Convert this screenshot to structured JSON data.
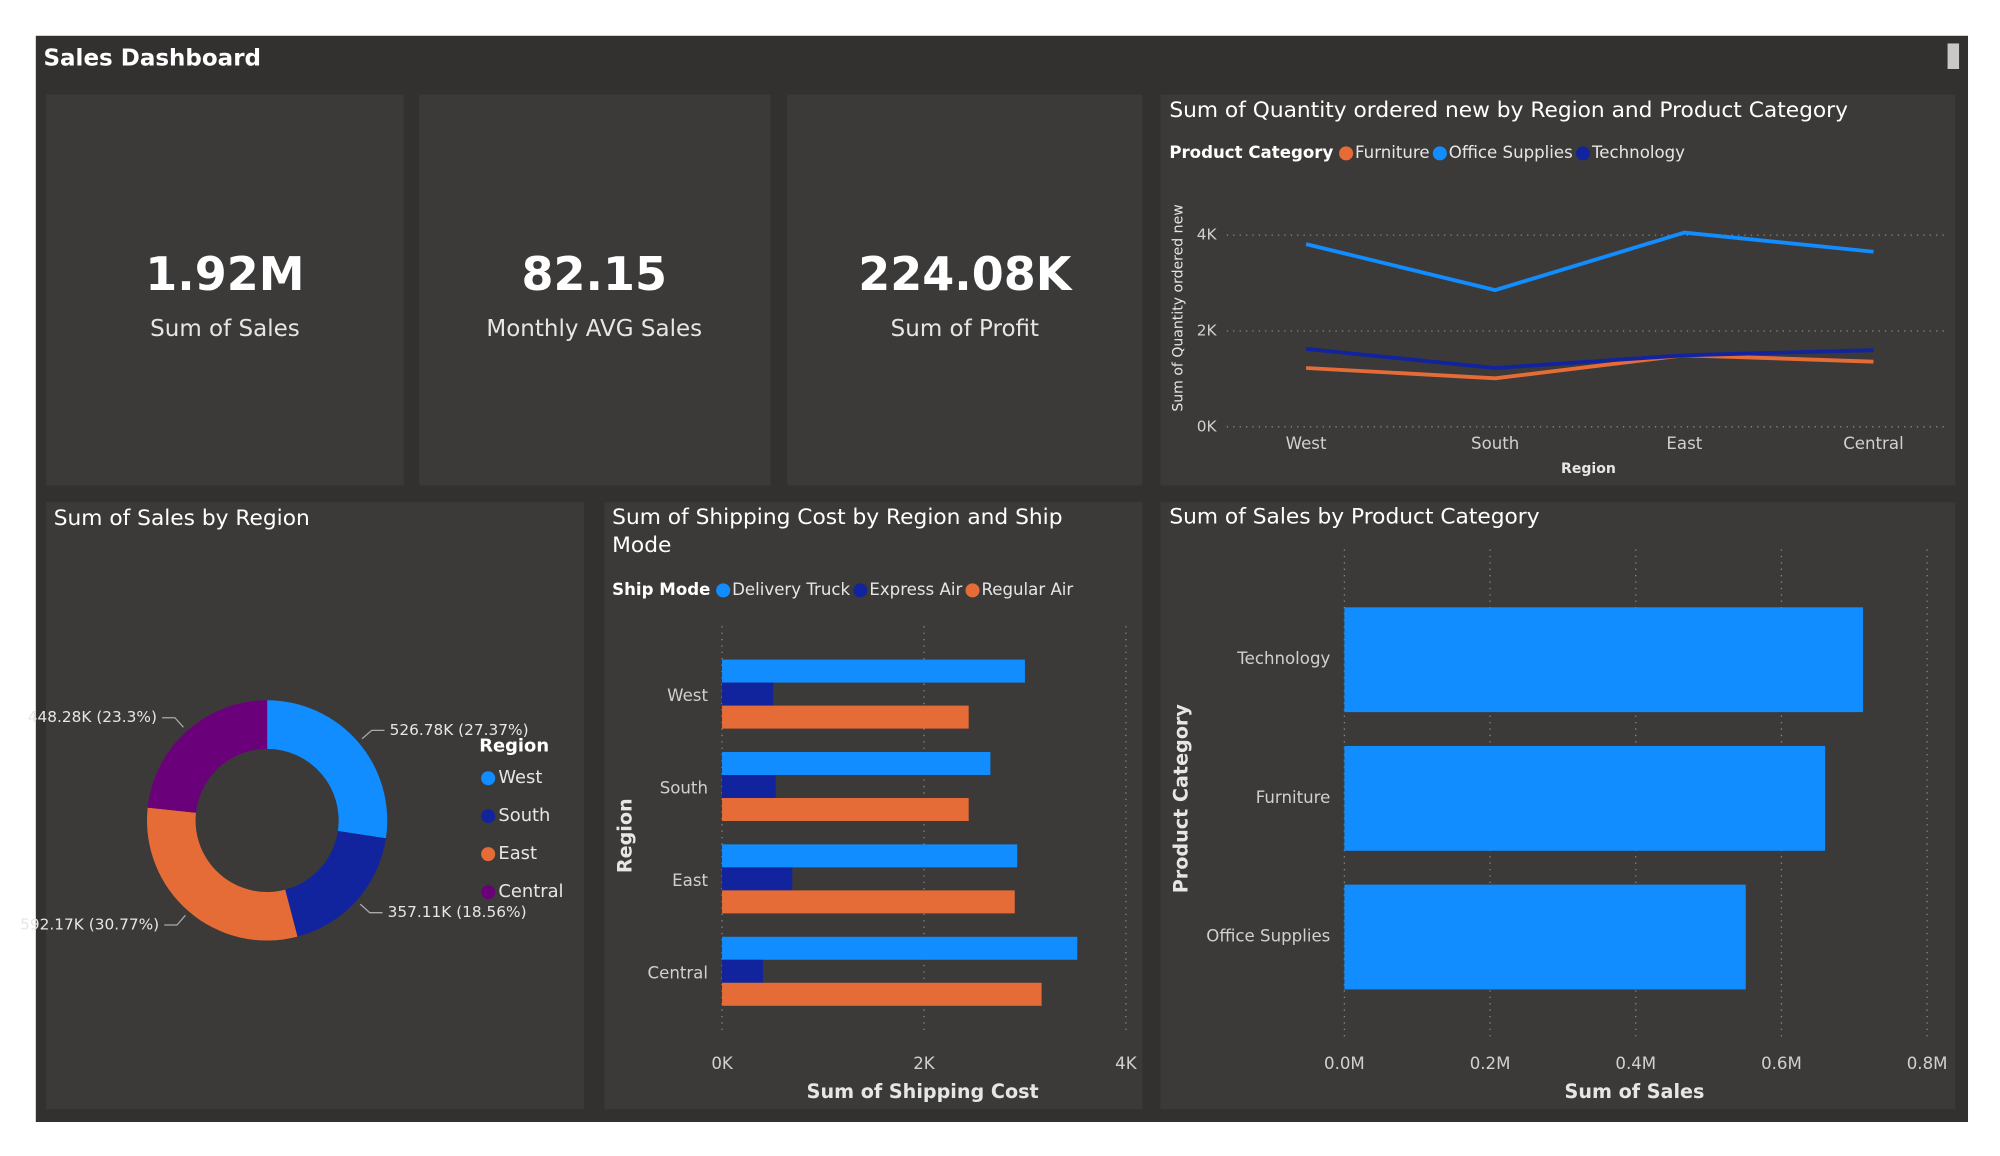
{
  "header": {
    "title": "Sales Dashboard"
  },
  "cards": [
    {
      "value": "1.92M",
      "label": "Sum of Sales"
    },
    {
      "value": "82.15",
      "label": "Monthly AVG Sales"
    },
    {
      "value": "224.08K",
      "label": "Sum of Profit"
    }
  ],
  "chart_data": [
    {
      "type": "line",
      "title": "Sum of Quantity ordered new by Region and Product Category",
      "legend_title": "Product Category",
      "x_label": "Region",
      "y_label": "Sum of Quantity ordered new",
      "categories": [
        "West",
        "South",
        "East",
        "Central"
      ],
      "series": [
        {
          "name": "Furniture",
          "color": "#e66c37",
          "values": [
            1227,
            1013,
            1493,
            1360
          ]
        },
        {
          "name": "Office Supplies",
          "color": "#118dff",
          "values": [
            3813,
            2853,
            4053,
            3653
          ]
        },
        {
          "name": "Technology",
          "color": "#12239e",
          "values": [
            1627,
            1227,
            1493,
            1600
          ]
        }
      ],
      "ylim": [
        0,
        4400
      ],
      "yticks": [
        {
          "value": 0,
          "label": "0K"
        },
        {
          "value": 2000,
          "label": "2K"
        },
        {
          "value": 4000,
          "label": "4K"
        }
      ],
      "grid": true
    },
    {
      "type": "donut",
      "title": "Sum of Sales by Region",
      "legend_title": "Region",
      "categories": [
        "West",
        "South",
        "East",
        "Central"
      ],
      "colors": [
        "#118dff",
        "#12239e",
        "#e66c37",
        "#6b007b"
      ],
      "values": [
        526780,
        357110,
        592170,
        448280
      ],
      "value_labels": [
        "526.78K (27.37%)",
        "357.11K (18.56%)",
        "592.17K (30.77%)",
        "448.28K (23.3%)"
      ]
    },
    {
      "type": "bar",
      "orientation": "horizontal",
      "title": "Sum of Shipping Cost by Region and Ship Mode",
      "legend_title": "Ship Mode",
      "x_label": "Sum of Shipping Cost",
      "y_label": "Region",
      "categories": [
        "West",
        "South",
        "East",
        "Central"
      ],
      "series": [
        {
          "name": "Delivery Truck",
          "color": "#118dff",
          "values": [
            3000,
            2658,
            2924,
            3519
          ]
        },
        {
          "name": "Express Air",
          "color": "#12239e",
          "values": [
            506,
            532,
            696,
            405
          ]
        },
        {
          "name": "Regular Air",
          "color": "#e66c37",
          "values": [
            2443,
            2443,
            2899,
            3165
          ]
        }
      ],
      "xlim": [
        0,
        4000
      ],
      "xticks": [
        {
          "value": 0,
          "label": "0K"
        },
        {
          "value": 2000,
          "label": "2K"
        },
        {
          "value": 4000,
          "label": "4K"
        }
      ],
      "grid": true
    },
    {
      "type": "bar",
      "orientation": "horizontal",
      "title": "Sum of Sales by Product Category",
      "x_label": "Sum of Sales",
      "y_label": "Product Category",
      "categories": [
        "Technology",
        "Furniture",
        "Office Supplies"
      ],
      "series": [
        {
          "name": "Sum of Sales",
          "color": "#118dff",
          "values": [
            712000,
            660000,
            551000
          ]
        }
      ],
      "xlim": [
        0,
        800000
      ],
      "xticks": [
        {
          "value": 0,
          "label": "0.0M"
        },
        {
          "value": 200000,
          "label": "0.2M"
        },
        {
          "value": 400000,
          "label": "0.4M"
        },
        {
          "value": 600000,
          "label": "0.6M"
        },
        {
          "value": 800000,
          "label": "0.8M"
        }
      ],
      "grid": true
    }
  ]
}
